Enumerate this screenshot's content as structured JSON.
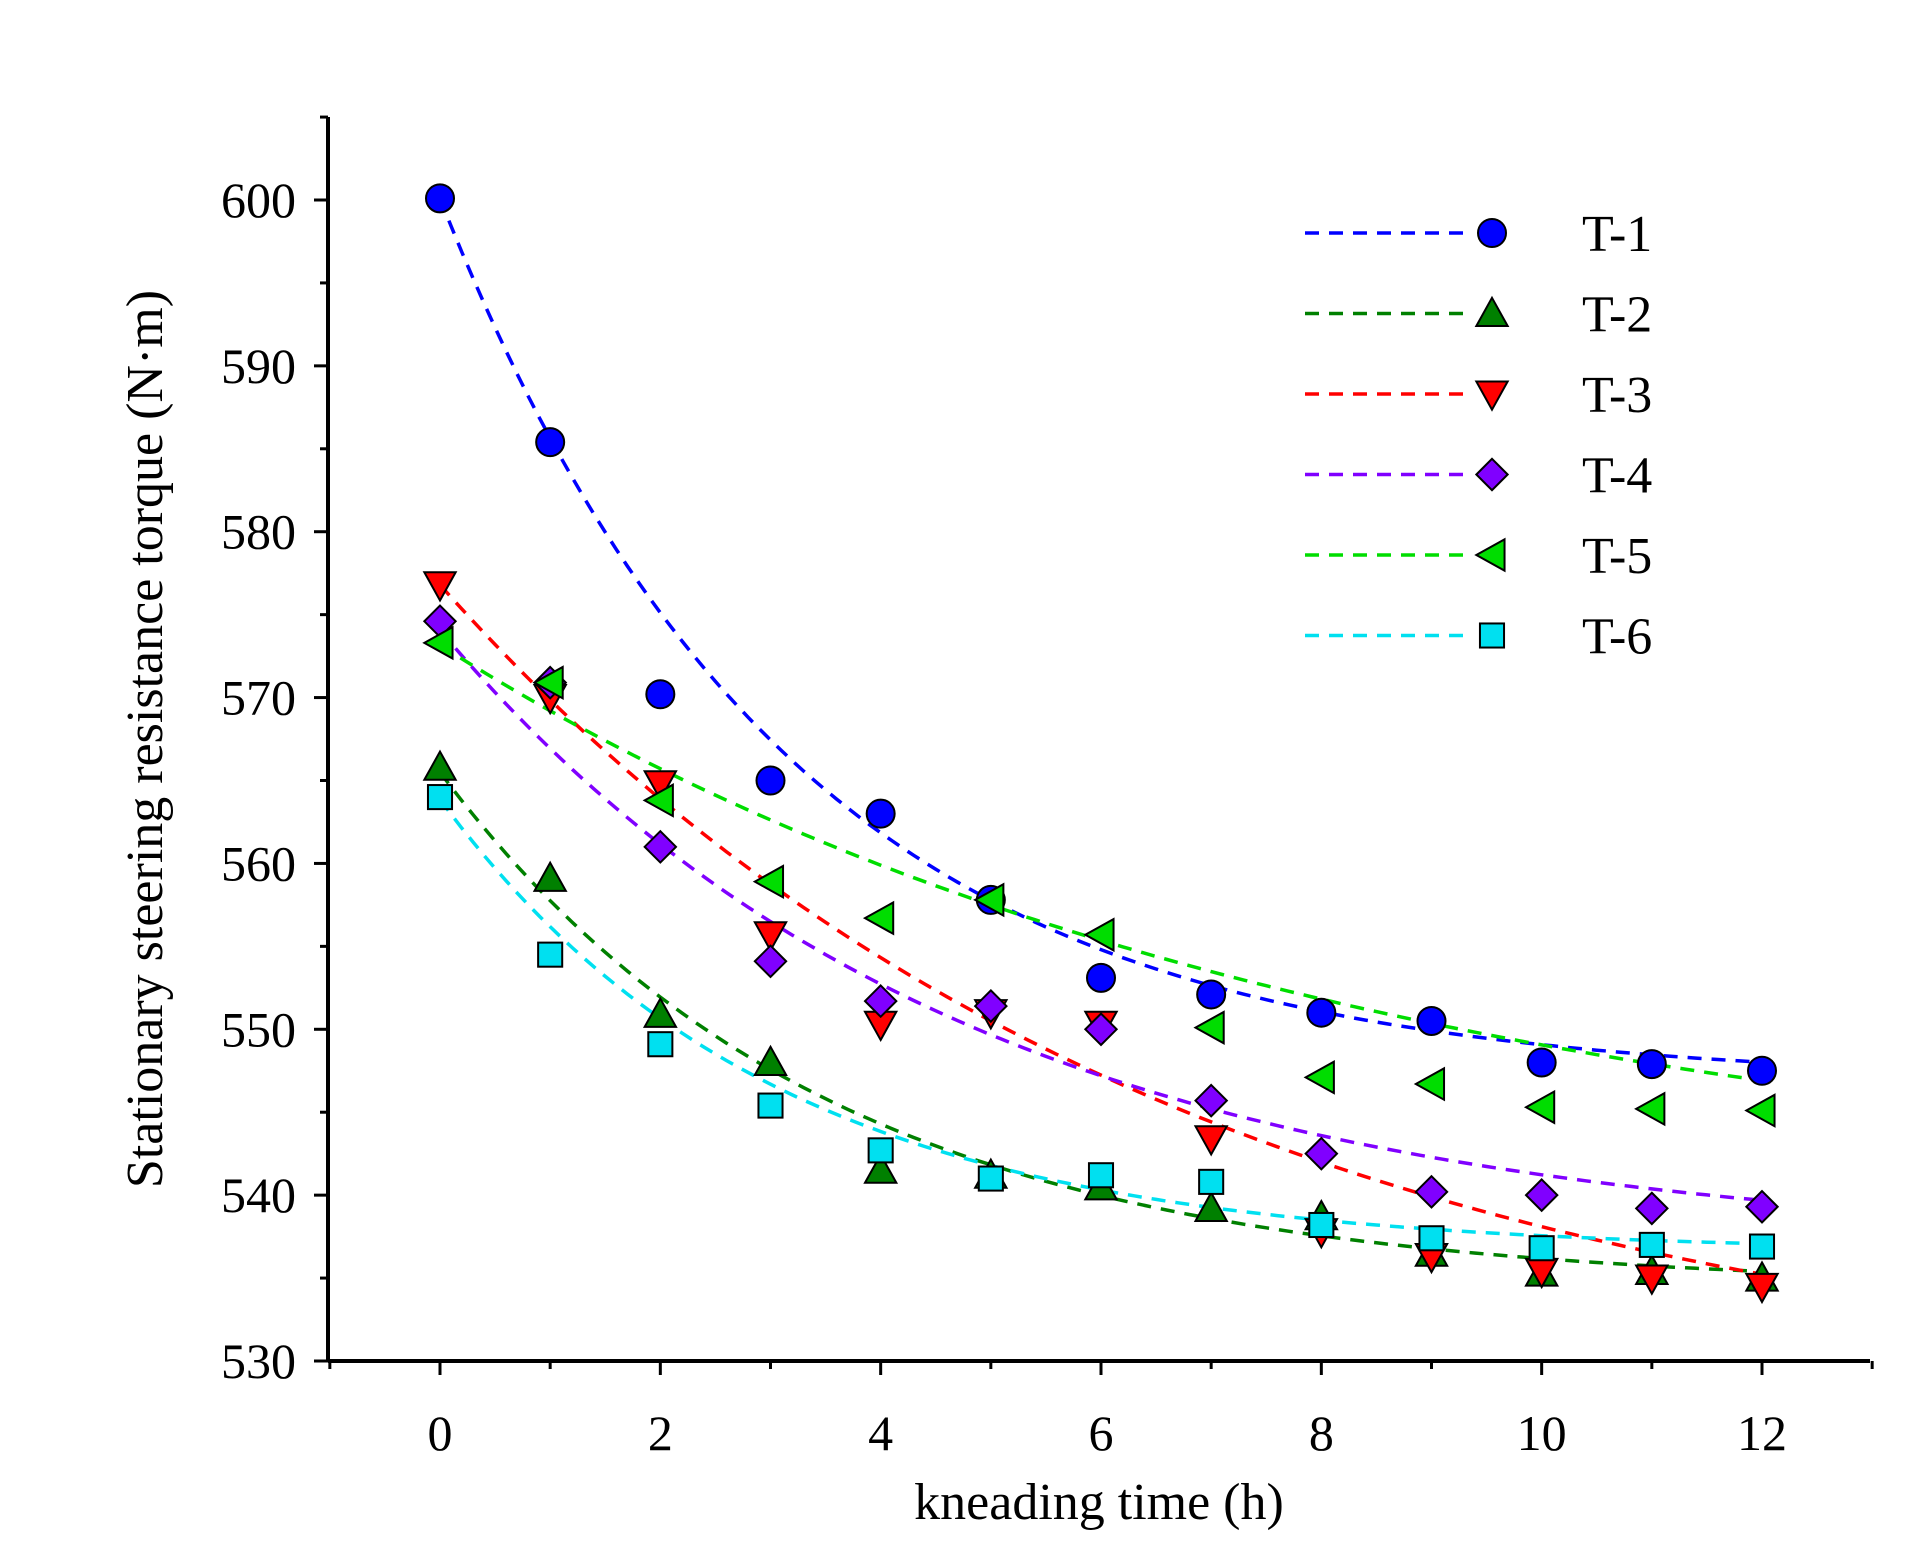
{
  "chart_data": {
    "type": "scatter",
    "title": "",
    "xlabel": "kneading time (h)",
    "ylabel": "Stationary steering resistance torque (N·m)",
    "xlim": [
      -1,
      13
    ],
    "ylim": [
      530,
      605
    ],
    "xticks": [
      0,
      2,
      4,
      6,
      8,
      10,
      12
    ],
    "yticks": [
      530,
      540,
      550,
      560,
      570,
      580,
      590,
      600
    ],
    "grid": false,
    "legend_position": "top-right",
    "x": [
      0,
      1,
      2,
      3,
      4,
      5,
      6,
      7,
      8,
      9,
      10,
      11,
      12
    ],
    "series": [
      {
        "name": "T-1",
        "color": "#0000ff",
        "marker": "circle",
        "values": [
          600.1,
          585.4,
          570.2,
          565.0,
          563.0,
          557.8,
          553.1,
          552.1,
          551.0,
          550.5,
          548.0,
          547.9,
          547.5
        ],
        "fit": {
          "a": 546.82,
          "b": 53.28,
          "k": 0.3164
        }
      },
      {
        "name": "T-2",
        "color": "#008000",
        "marker": "triangle-up",
        "values": [
          565.8,
          559.1,
          550.9,
          548.0,
          541.5,
          541.2,
          540.5,
          539.2,
          538.7,
          536.5,
          535.3,
          535.4,
          535.0
        ],
        "fit": {
          "a": 534.4,
          "b": 31.1,
          "k": 0.2864
        }
      },
      {
        "name": "T-3",
        "color": "#ff0000",
        "marker": "triangle-down",
        "values": [
          576.8,
          570.0,
          564.8,
          555.7,
          550.3,
          551.0,
          550.3,
          543.4,
          537.8,
          536.3,
          535.4,
          535.0,
          534.5
        ],
        "fit": {
          "a": 527.0,
          "b": 49.8,
          "k": 0.1501
        }
      },
      {
        "name": "T-4",
        "color": "#8000ff",
        "marker": "diamond",
        "values": [
          574.6,
          570.9,
          561.0,
          554.1,
          551.7,
          551.4,
          550.0,
          545.7,
          542.5,
          540.2,
          540.0,
          539.2,
          539.3
        ],
        "fit": {
          "a": 536.77,
          "b": 37.3,
          "k": 0.2124
        }
      },
      {
        "name": "T-5",
        "color": "#00dd00",
        "marker": "triangle-left",
        "values": [
          573.3,
          570.9,
          563.8,
          558.9,
          556.7,
          557.8,
          555.7,
          550.1,
          547.1,
          546.7,
          545.3,
          545.2,
          545.1
        ],
        "fit": {
          "a": 539.26,
          "b": 33.9,
          "k": 0.1241
        }
      },
      {
        "name": "T-6",
        "color": "#00e0f0",
        "marker": "square",
        "values": [
          564.0,
          554.5,
          549.1,
          545.4,
          542.7,
          541.0,
          541.2,
          540.8,
          538.2,
          537.4,
          536.8,
          537.0,
          536.9
        ],
        "fit": {
          "a": 536.55,
          "b": 27.31,
          "k": 0.3303
        }
      }
    ]
  }
}
